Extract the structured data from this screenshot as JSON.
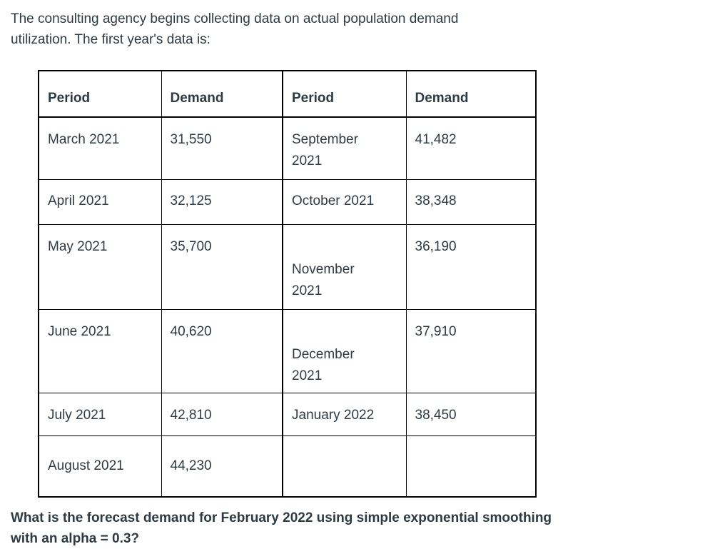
{
  "page": {
    "intro": "The consulting agency begins collecting data on actual population demand\nutilization. The first year's data is:",
    "question": "What is the forecast demand for February 2022 using simple exponential smoothing\nwith an alpha = 0.3?"
  },
  "table": {
    "headers": [
      "Period",
      "Demand",
      "Period",
      "Demand"
    ],
    "rows": [
      [
        "March 2021",
        "31,550",
        "September\n2021",
        "41,482"
      ],
      [
        "April 2021",
        "32,125",
        "October 2021",
        "38,348"
      ],
      [
        "May 2021",
        "35,700",
        "November\n2021",
        "36,190"
      ],
      [
        "June 2021",
        "40,620",
        "December\n2021",
        "37,910"
      ],
      [
        "July 2021",
        "42,810",
        "January 2022",
        "38,450"
      ],
      [
        "August 2021",
        "44,230",
        "",
        ""
      ]
    ]
  },
  "colors": {
    "text": "#2d3b45",
    "border": "#000000",
    "background": "#ffffff"
  }
}
